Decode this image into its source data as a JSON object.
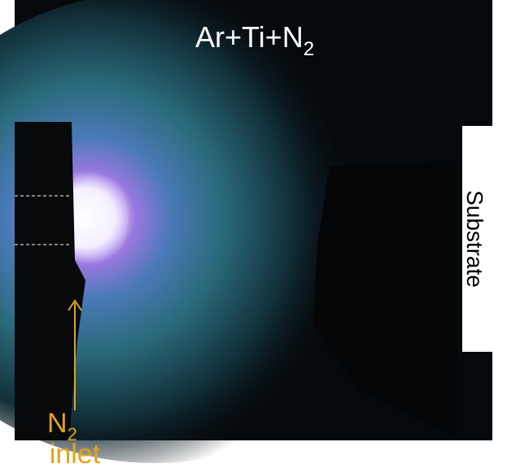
{
  "title": {
    "text": "Ar+Ti+N",
    "subscript": "2"
  },
  "labels": {
    "substrate": "Substrate",
    "inlet": {
      "gas": "N",
      "subscript": "2",
      "word": "inlet"
    }
  }
}
